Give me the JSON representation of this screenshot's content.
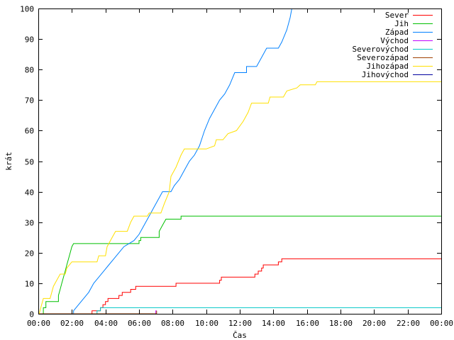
{
  "chart_data": {
    "type": "line",
    "title": "",
    "xlabel": "Čas",
    "ylabel": "krát",
    "xlim": [
      0,
      24
    ],
    "ylim": [
      0,
      100
    ],
    "x_unit": "hours",
    "x_ticks": [
      "00:00",
      "02:00",
      "04:00",
      "06:00",
      "08:00",
      "10:00",
      "12:00",
      "14:00",
      "16:00",
      "18:00",
      "20:00",
      "22:00",
      "00:00"
    ],
    "y_ticks": [
      "0",
      "10",
      "20",
      "30",
      "40",
      "50",
      "60",
      "70",
      "80",
      "90",
      "100"
    ],
    "grid": false,
    "legend_position": "top-right",
    "series": [
      {
        "name": "Sever",
        "color": "#ff0000",
        "points": [
          [
            0,
            0
          ],
          [
            3.2,
            0
          ],
          [
            3.2,
            1
          ],
          [
            3.7,
            1
          ],
          [
            3.7,
            2
          ],
          [
            3.85,
            2
          ],
          [
            3.85,
            3
          ],
          [
            4.0,
            3
          ],
          [
            4.0,
            4
          ],
          [
            4.15,
            4
          ],
          [
            4.15,
            5
          ],
          [
            4.8,
            5
          ],
          [
            4.8,
            6
          ],
          [
            5.0,
            6
          ],
          [
            5.0,
            7
          ],
          [
            5.5,
            7
          ],
          [
            5.5,
            8
          ],
          [
            5.8,
            8
          ],
          [
            5.8,
            9
          ],
          [
            8.2,
            9
          ],
          [
            8.2,
            10
          ],
          [
            10.8,
            10
          ],
          [
            10.8,
            11
          ],
          [
            10.9,
            11
          ],
          [
            10.9,
            12
          ],
          [
            12.9,
            12
          ],
          [
            12.9,
            13
          ],
          [
            13.1,
            13
          ],
          [
            13.1,
            14
          ],
          [
            13.3,
            14
          ],
          [
            13.3,
            15
          ],
          [
            13.4,
            15
          ],
          [
            13.4,
            16
          ],
          [
            14.3,
            16
          ],
          [
            14.3,
            17
          ],
          [
            14.5,
            17
          ],
          [
            14.5,
            18
          ],
          [
            24,
            18
          ]
        ]
      },
      {
        "name": "Jih",
        "color": "#00c000",
        "points": [
          [
            0,
            0
          ],
          [
            0.3,
            0
          ],
          [
            0.3,
            2
          ],
          [
            0.45,
            2
          ],
          [
            0.45,
            4
          ],
          [
            1.2,
            4
          ],
          [
            1.2,
            6
          ],
          [
            1.3,
            8
          ],
          [
            1.4,
            10
          ],
          [
            1.5,
            12
          ],
          [
            1.6,
            14
          ],
          [
            1.7,
            16
          ],
          [
            1.8,
            18
          ],
          [
            1.9,
            20
          ],
          [
            2.0,
            22
          ],
          [
            2.1,
            23
          ],
          [
            6.0,
            23
          ],
          [
            6.0,
            24
          ],
          [
            6.1,
            24
          ],
          [
            6.1,
            25
          ],
          [
            7.2,
            25
          ],
          [
            7.2,
            27
          ],
          [
            7.4,
            29
          ],
          [
            7.6,
            31
          ],
          [
            8.5,
            31
          ],
          [
            8.5,
            32
          ],
          [
            24,
            32
          ]
        ]
      },
      {
        "name": "Západ",
        "color": "#0080ff",
        "points": [
          [
            0,
            0
          ],
          [
            2.1,
            0
          ],
          [
            2.1,
            1
          ],
          [
            2.4,
            3
          ],
          [
            2.7,
            5
          ],
          [
            3.0,
            7
          ],
          [
            3.3,
            10
          ],
          [
            3.6,
            12
          ],
          [
            3.9,
            14
          ],
          [
            4.2,
            16
          ],
          [
            4.5,
            18
          ],
          [
            4.8,
            20
          ],
          [
            5.1,
            22
          ],
          [
            5.4,
            23
          ],
          [
            5.7,
            24
          ],
          [
            6.0,
            26
          ],
          [
            6.3,
            29
          ],
          [
            6.6,
            32
          ],
          [
            6.9,
            35
          ],
          [
            7.2,
            38
          ],
          [
            7.4,
            40
          ],
          [
            7.9,
            40
          ],
          [
            8.1,
            42
          ],
          [
            8.4,
            44
          ],
          [
            8.7,
            47
          ],
          [
            9.0,
            50
          ],
          [
            9.3,
            52
          ],
          [
            9.6,
            55
          ],
          [
            9.9,
            60
          ],
          [
            10.2,
            64
          ],
          [
            10.5,
            67
          ],
          [
            10.8,
            70
          ],
          [
            11.1,
            72
          ],
          [
            11.4,
            75
          ],
          [
            11.7,
            79
          ],
          [
            12.4,
            79
          ],
          [
            12.4,
            81
          ],
          [
            13.0,
            81
          ],
          [
            13.3,
            84
          ],
          [
            13.6,
            87
          ],
          [
            14.3,
            87
          ],
          [
            14.5,
            89
          ],
          [
            14.8,
            93
          ],
          [
            15.0,
            97
          ],
          [
            15.1,
            100
          ]
        ]
      },
      {
        "name": "Východ",
        "color": "#c000ff",
        "points": [
          [
            0,
            0
          ],
          [
            7.0,
            0
          ],
          [
            7.0,
            1
          ],
          [
            7.05,
            1
          ]
        ]
      },
      {
        "name": "Severovýchod",
        "color": "#00c8c8",
        "points": [
          [
            0,
            0
          ],
          [
            3.5,
            0
          ],
          [
            3.5,
            1
          ],
          [
            3.7,
            1
          ],
          [
            3.7,
            2
          ],
          [
            24,
            2
          ]
        ]
      },
      {
        "name": "Severozápad",
        "color": "#a04000",
        "points": [
          [
            0,
            0
          ],
          [
            7.05,
            0
          ],
          [
            7.05,
            1
          ]
        ]
      },
      {
        "name": "Jihozápad",
        "color": "#ffe000",
        "points": [
          [
            0,
            0
          ],
          [
            0.05,
            0
          ],
          [
            0.2,
            3
          ],
          [
            0.3,
            5
          ],
          [
            0.7,
            5
          ],
          [
            0.9,
            9
          ],
          [
            1.1,
            11
          ],
          [
            1.3,
            13
          ],
          [
            1.6,
            13
          ],
          [
            1.7,
            15
          ],
          [
            2.0,
            17
          ],
          [
            3.5,
            17
          ],
          [
            3.6,
            19
          ],
          [
            4.0,
            19
          ],
          [
            4.1,
            22
          ],
          [
            4.4,
            25
          ],
          [
            4.6,
            27
          ],
          [
            5.3,
            27
          ],
          [
            5.5,
            30
          ],
          [
            5.7,
            32
          ],
          [
            6.5,
            32
          ],
          [
            6.6,
            33
          ],
          [
            7.3,
            33
          ],
          [
            7.5,
            36
          ],
          [
            7.8,
            40
          ],
          [
            7.9,
            45
          ],
          [
            8.2,
            48
          ],
          [
            8.5,
            52
          ],
          [
            8.7,
            54
          ],
          [
            10.0,
            54
          ],
          [
            10.5,
            55
          ],
          [
            10.6,
            57
          ],
          [
            11.0,
            57
          ],
          [
            11.3,
            59
          ],
          [
            11.8,
            60
          ],
          [
            12.2,
            63
          ],
          [
            12.5,
            66
          ],
          [
            12.7,
            69
          ],
          [
            13.7,
            69
          ],
          [
            13.8,
            71
          ],
          [
            14.6,
            71
          ],
          [
            14.8,
            73
          ],
          [
            15.4,
            74
          ],
          [
            15.6,
            75
          ],
          [
            16.5,
            75
          ],
          [
            16.6,
            76
          ],
          [
            24,
            76
          ]
        ]
      },
      {
        "name": "Jihovýchod",
        "color": "#0000a0",
        "points": []
      }
    ]
  }
}
